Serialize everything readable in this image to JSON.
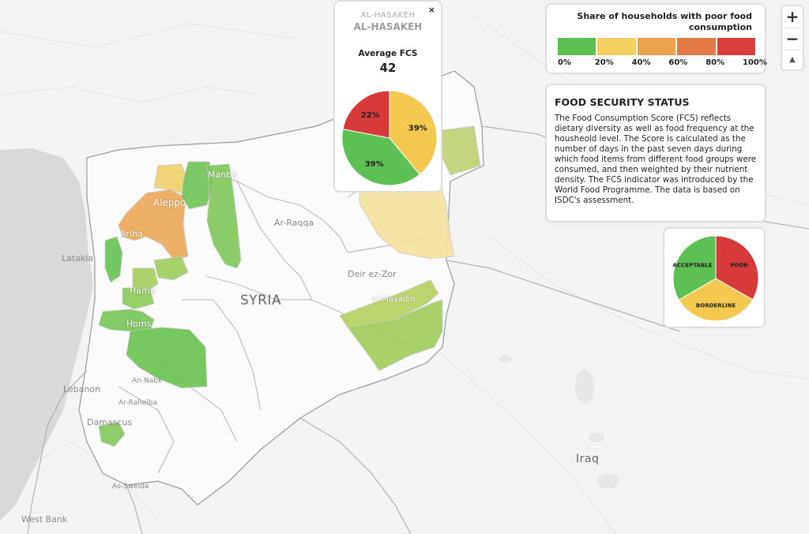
{
  "map": {
    "country_label": "SYRIA",
    "place_labels": {
      "aleppo": "Aleppo",
      "manbij": "Manbij",
      "ariha": "Ariha",
      "latakia": "Latakia",
      "ar_raqqa": "Ar-Raqqa",
      "deir_ez_zor": "Deir ez-Zor",
      "al_mayadin": "Al-Mayadin",
      "hama": "Hama",
      "homs": "Homs",
      "lebanon": "Lebanon",
      "an_nabk": "An-Nabk",
      "ar_raheiba": "Ar-Raheiba",
      "damascus": "Damascus",
      "as_sweida": "As-Sweida",
      "west_bank": "West Bank",
      "iraq": "Iraq"
    }
  },
  "popup": {
    "subtitle": "AL-HASAKEH",
    "title": "AL-HASAKEH",
    "fcs_label": "Average FCS",
    "fcs_value": "42",
    "close_label": "×",
    "slices": [
      {
        "label": "39%",
        "value": 39,
        "color": "#f4c94f"
      },
      {
        "label": "39%",
        "value": 39,
        "color": "#5cc152"
      },
      {
        "label": "22%",
        "value": 22,
        "color": "#d63a3a"
      }
    ]
  },
  "legend": {
    "title": "Share of households with poor food consumption",
    "colors": [
      "#5cc152",
      "#f4d060",
      "#eba34d",
      "#e17a45",
      "#d93f3f"
    ],
    "ticks": [
      "0%",
      "20%",
      "40%",
      "60%",
      "80%",
      "100%"
    ]
  },
  "zoom": {
    "zoom_in": "+",
    "zoom_out": "−",
    "reset": "▲"
  },
  "info": {
    "title": "FOOD SECURITY STATUS",
    "text": "The Food Consumption Score (FCS) reflects dietary diversity as well as food frequency at the housheold level. The Score is calculated as the number of days in the past seven days during which food items from different food groups were consumed, and then weighted by their nutrient density. The FCS indicator was introduced by the World Food Programme. The data is based on ISDC's assessment."
  },
  "category_pie": {
    "slices": [
      {
        "label": "POOR",
        "value": 33.3,
        "color": "#d63a3a"
      },
      {
        "label": "BORDERLINE",
        "value": 33.3,
        "color": "#f4c94f"
      },
      {
        "label": "ACCEPTABLE",
        "value": 33.4,
        "color": "#5cc152"
      }
    ]
  }
}
